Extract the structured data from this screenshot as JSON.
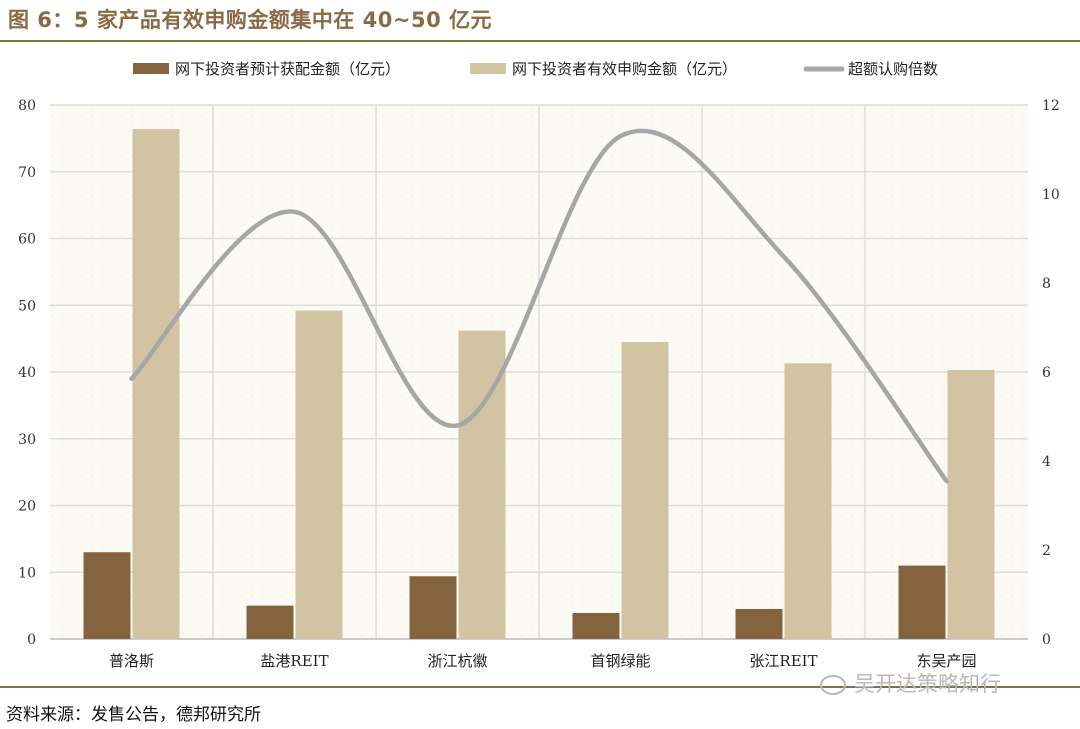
{
  "header": {
    "title": "图 6：5 家产品有效申购金额集中在 40~50 亿元"
  },
  "footer": {
    "source": "资料来源：发售公告，德邦研究所"
  },
  "watermark": {
    "text": "吴开达策略知行",
    "icon": "wechat-icon"
  },
  "colors": {
    "offline": "#84643f",
    "effective": "#d2c4a2",
    "multiple": "#a6a6a6",
    "accent": "#8a6a45",
    "plot_bg": "#fcfaf4",
    "grid": "#dddddd"
  },
  "chart_data": {
    "type": "bar",
    "categories": [
      "普洛斯",
      "盐港REIT",
      "浙江杭徽",
      "首钢绿能",
      "张江REIT",
      "东吴产园"
    ],
    "series": [
      {
        "name": "网下投资者预计获配金额（亿元）",
        "kind": "bar",
        "axis": "left",
        "values": [
          13.0,
          5.0,
          9.4,
          3.9,
          4.5,
          11.0
        ]
      },
      {
        "name": "网下投资者有效申购金额（亿元）",
        "kind": "bar",
        "axis": "left",
        "values": [
          76.4,
          49.2,
          46.2,
          44.5,
          41.3,
          40.3
        ]
      },
      {
        "name": "超额认购倍数",
        "kind": "line",
        "axis": "right",
        "values": [
          5.85,
          9.6,
          4.8,
          11.3,
          8.6,
          3.55
        ]
      }
    ],
    "ylim": [
      0,
      80
    ],
    "yticks": [
      "0",
      "10",
      "20",
      "30",
      "40",
      "50",
      "60",
      "70",
      "80"
    ],
    "y2lim": [
      0,
      12
    ],
    "y2ticks": [
      "0",
      "2",
      "4",
      "6",
      "8",
      "10",
      "12"
    ],
    "grid": true,
    "legend": "top"
  }
}
